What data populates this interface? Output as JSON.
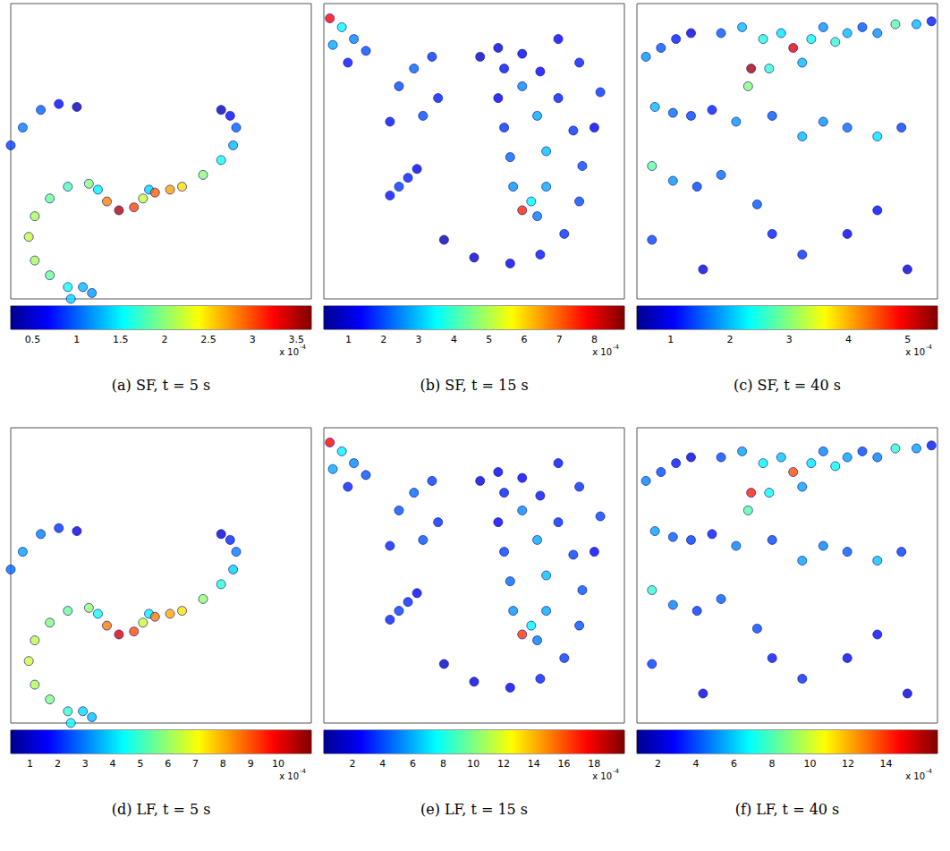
{
  "chart_data": [
    {
      "type": "scatter",
      "title": "(a) SF, t = 5 s",
      "xlim": [
        0,
        1
      ],
      "ylim": [
        0,
        1
      ],
      "tick_labels": false,
      "points": [
        [
          0.0,
          0.52,
          0.9
        ],
        [
          0.04,
          0.58,
          1.1
        ],
        [
          0.1,
          0.64,
          1.0
        ],
        [
          0.16,
          0.66,
          0.7
        ],
        [
          0.22,
          0.65,
          0.4
        ],
        [
          0.2,
          0.0,
          1.4
        ],
        [
          0.19,
          0.04,
          1.6
        ],
        [
          0.13,
          0.08,
          1.9
        ],
        [
          0.08,
          0.13,
          2.1
        ],
        [
          0.06,
          0.21,
          2.2
        ],
        [
          0.08,
          0.28,
          2.1
        ],
        [
          0.13,
          0.34,
          1.9
        ],
        [
          0.19,
          0.38,
          1.8
        ],
        [
          0.26,
          0.39,
          2.0
        ],
        [
          0.29,
          0.37,
          1.5
        ],
        [
          0.24,
          0.04,
          1.3
        ],
        [
          0.27,
          0.02,
          1.2
        ],
        [
          0.32,
          0.33,
          2.8
        ],
        [
          0.36,
          0.3,
          3.5
        ],
        [
          0.41,
          0.31,
          3.0
        ],
        [
          0.44,
          0.34,
          2.2
        ],
        [
          0.46,
          0.37,
          1.4
        ],
        [
          0.48,
          0.36,
          2.9
        ],
        [
          0.53,
          0.37,
          2.7
        ],
        [
          0.57,
          0.38,
          2.5
        ],
        [
          0.64,
          0.42,
          2.0
        ],
        [
          0.7,
          0.47,
          1.6
        ],
        [
          0.74,
          0.52,
          1.3
        ],
        [
          0.75,
          0.58,
          1.0
        ],
        [
          0.73,
          0.62,
          0.7
        ],
        [
          0.7,
          0.64,
          0.4
        ]
      ],
      "colorbar": {
        "range": [
          0.25,
          3.67
        ],
        "ticks": [
          0.5,
          1,
          1.5,
          2,
          2.5,
          3,
          3.5
        ],
        "multiplier": {
          "base": "x 10",
          "exponent": "-4"
        }
      }
    },
    {
      "type": "scatter",
      "title": "(b) SF, t = 15 s",
      "xlim": [
        0,
        1
      ],
      "ylim": [
        0,
        1
      ],
      "tick_labels": false,
      "points": [
        [
          0.52,
          0.82,
          0.8
        ],
        [
          0.58,
          0.85,
          1.0
        ],
        [
          0.66,
          0.83,
          1.2
        ],
        [
          0.72,
          0.77,
          1.4
        ],
        [
          0.78,
          0.68,
          1.6
        ],
        [
          0.83,
          0.57,
          1.8
        ],
        [
          0.86,
          0.45,
          2.0
        ],
        [
          0.85,
          0.33,
          2.0
        ],
        [
          0.8,
          0.22,
          1.8
        ],
        [
          0.72,
          0.15,
          1.5
        ],
        [
          0.62,
          0.12,
          1.2
        ],
        [
          0.5,
          0.14,
          0.9
        ],
        [
          0.4,
          0.2,
          0.6
        ],
        [
          0.6,
          0.78,
          1.5
        ],
        [
          0.66,
          0.72,
          2.5
        ],
        [
          0.71,
          0.62,
          2.8
        ],
        [
          0.74,
          0.5,
          3.0
        ],
        [
          0.74,
          0.38,
          2.8
        ],
        [
          0.71,
          0.28,
          2.4
        ],
        [
          0.58,
          0.68,
          1.2
        ],
        [
          0.6,
          0.58,
          1.8
        ],
        [
          0.62,
          0.48,
          2.2
        ],
        [
          0.63,
          0.38,
          2.6
        ],
        [
          0.66,
          0.3,
          7.5
        ],
        [
          0.69,
          0.33,
          3.5
        ],
        [
          0.02,
          0.95,
          7.8
        ],
        [
          0.06,
          0.92,
          3.5
        ],
        [
          0.1,
          0.88,
          2.5
        ],
        [
          0.14,
          0.84,
          2.0
        ],
        [
          0.08,
          0.8,
          1.5
        ],
        [
          0.03,
          0.86,
          2.8
        ],
        [
          0.25,
          0.72,
          2.0
        ],
        [
          0.3,
          0.78,
          2.2
        ],
        [
          0.36,
          0.82,
          1.8
        ],
        [
          0.22,
          0.6,
          1.5
        ],
        [
          0.33,
          0.62,
          2.0
        ],
        [
          0.38,
          0.68,
          1.6
        ],
        [
          0.78,
          0.88,
          1.4
        ],
        [
          0.85,
          0.8,
          1.6
        ],
        [
          0.92,
          0.7,
          1.8
        ],
        [
          0.9,
          0.58,
          1.2
        ],
        [
          0.22,
          0.35,
          1.5
        ],
        [
          0.25,
          0.38,
          1.8
        ],
        [
          0.28,
          0.41,
          1.6
        ],
        [
          0.31,
          0.44,
          1.2
        ]
      ],
      "colorbar": {
        "range": [
          0.3,
          8.85
        ],
        "ticks": [
          1,
          2,
          3,
          4,
          5,
          6,
          7,
          8
        ],
        "multiplier": {
          "base": "x 10",
          "exponent": "-4"
        }
      }
    },
    {
      "type": "scatter",
      "title": "(c) SF, t = 40 s",
      "xlim": [
        0,
        1
      ],
      "ylim": [
        0,
        1
      ],
      "tick_labels": false,
      "points": [
        [
          0.28,
          0.9,
          1.5
        ],
        [
          0.35,
          0.92,
          2.0
        ],
        [
          0.42,
          0.88,
          2.5
        ],
        [
          0.48,
          0.9,
          2.2
        ],
        [
          0.52,
          0.85,
          5.0
        ],
        [
          0.55,
          0.8,
          2.0
        ],
        [
          0.58,
          0.88,
          2.4
        ],
        [
          0.62,
          0.92,
          1.8
        ],
        [
          0.66,
          0.87,
          2.6
        ],
        [
          0.7,
          0.9,
          2.0
        ],
        [
          0.75,
          0.92,
          1.5
        ],
        [
          0.8,
          0.9,
          1.8
        ],
        [
          0.86,
          0.93,
          2.8
        ],
        [
          0.93,
          0.93,
          2.0
        ],
        [
          0.98,
          0.94,
          1.2
        ],
        [
          0.38,
          0.78,
          5.3
        ],
        [
          0.37,
          0.72,
          3.0
        ],
        [
          0.44,
          0.78,
          2.6
        ],
        [
          0.03,
          0.82,
          1.8
        ],
        [
          0.08,
          0.85,
          1.5
        ],
        [
          0.13,
          0.88,
          1.2
        ],
        [
          0.18,
          0.9,
          0.9
        ],
        [
          0.06,
          0.65,
          2.0
        ],
        [
          0.12,
          0.63,
          1.6
        ],
        [
          0.18,
          0.62,
          1.4
        ],
        [
          0.25,
          0.64,
          1.2
        ],
        [
          0.33,
          0.6,
          1.8
        ],
        [
          0.45,
          0.62,
          1.5
        ],
        [
          0.55,
          0.55,
          2.0
        ],
        [
          0.62,
          0.6,
          1.8
        ],
        [
          0.7,
          0.58,
          1.6
        ],
        [
          0.8,
          0.55,
          2.2
        ],
        [
          0.88,
          0.58,
          1.4
        ],
        [
          0.05,
          0.45,
          2.8
        ],
        [
          0.12,
          0.4,
          1.8
        ],
        [
          0.2,
          0.38,
          1.4
        ],
        [
          0.28,
          0.42,
          1.6
        ],
        [
          0.4,
          0.32,
          1.5
        ],
        [
          0.45,
          0.22,
          1.2
        ],
        [
          0.55,
          0.15,
          1.3
        ],
        [
          0.7,
          0.22,
          1.0
        ],
        [
          0.8,
          0.3,
          1.1
        ],
        [
          0.05,
          0.2,
          1.4
        ],
        [
          0.22,
          0.1,
          0.9
        ],
        [
          0.9,
          0.1,
          0.8
        ]
      ],
      "colorbar": {
        "range": [
          0.43,
          5.5
        ],
        "ticks": [
          1,
          2,
          3,
          4,
          5
        ],
        "multiplier": {
          "base": "x 10",
          "exponent": "-4"
        }
      }
    },
    {
      "type": "scatter",
      "title": "(d) LF, t = 5 s",
      "xlim": [
        0,
        1
      ],
      "ylim": [
        0,
        1
      ],
      "tick_labels": false,
      "points": [
        [
          0.0,
          0.52,
          2.8
        ],
        [
          0.04,
          0.58,
          3.4
        ],
        [
          0.1,
          0.64,
          3.0
        ],
        [
          0.16,
          0.66,
          2.2
        ],
        [
          0.22,
          0.65,
          1.3
        ],
        [
          0.2,
          0.0,
          4.5
        ],
        [
          0.19,
          0.04,
          5.0
        ],
        [
          0.13,
          0.08,
          5.8
        ],
        [
          0.08,
          0.13,
          6.3
        ],
        [
          0.06,
          0.21,
          6.6
        ],
        [
          0.08,
          0.28,
          6.4
        ],
        [
          0.13,
          0.34,
          5.8
        ],
        [
          0.19,
          0.38,
          5.5
        ],
        [
          0.26,
          0.39,
          6.0
        ],
        [
          0.29,
          0.37,
          4.6
        ],
        [
          0.24,
          0.04,
          4.0
        ],
        [
          0.27,
          0.02,
          3.7
        ],
        [
          0.32,
          0.33,
          8.5
        ],
        [
          0.36,
          0.3,
          10.3
        ],
        [
          0.41,
          0.31,
          9.0
        ],
        [
          0.44,
          0.34,
          6.6
        ],
        [
          0.46,
          0.37,
          4.3
        ],
        [
          0.48,
          0.36,
          8.5
        ],
        [
          0.53,
          0.37,
          8.0
        ],
        [
          0.57,
          0.38,
          7.4
        ],
        [
          0.64,
          0.42,
          6.0
        ],
        [
          0.7,
          0.47,
          4.8
        ],
        [
          0.74,
          0.52,
          3.9
        ],
        [
          0.75,
          0.58,
          3.0
        ],
        [
          0.73,
          0.62,
          2.1
        ],
        [
          0.7,
          0.64,
          1.2
        ]
      ],
      "colorbar": {
        "range": [
          0.3,
          11.2
        ],
        "ticks": [
          1,
          2,
          3,
          4,
          5,
          6,
          7,
          8,
          9,
          10
        ],
        "multiplier": {
          "base": "x 10",
          "exponent": "-4"
        }
      }
    },
    {
      "type": "scatter",
      "title": "(e) LF, t = 15 s",
      "xlim": [
        0,
        1
      ],
      "ylim": [
        0,
        1
      ],
      "tick_labels": false,
      "points": [
        [
          0.52,
          0.82,
          1.7
        ],
        [
          0.58,
          0.85,
          2.1
        ],
        [
          0.66,
          0.83,
          2.5
        ],
        [
          0.72,
          0.77,
          2.9
        ],
        [
          0.78,
          0.68,
          3.4
        ],
        [
          0.83,
          0.57,
          3.8
        ],
        [
          0.86,
          0.45,
          4.2
        ],
        [
          0.85,
          0.33,
          4.2
        ],
        [
          0.8,
          0.22,
          3.8
        ],
        [
          0.72,
          0.15,
          3.2
        ],
        [
          0.62,
          0.12,
          2.5
        ],
        [
          0.5,
          0.14,
          1.9
        ],
        [
          0.4,
          0.2,
          1.3
        ],
        [
          0.6,
          0.78,
          3.2
        ],
        [
          0.66,
          0.72,
          5.3
        ],
        [
          0.71,
          0.62,
          5.9
        ],
        [
          0.74,
          0.5,
          6.3
        ],
        [
          0.74,
          0.38,
          5.9
        ],
        [
          0.71,
          0.28,
          5.0
        ],
        [
          0.58,
          0.68,
          2.5
        ],
        [
          0.6,
          0.58,
          3.8
        ],
        [
          0.62,
          0.48,
          4.6
        ],
        [
          0.63,
          0.38,
          5.5
        ],
        [
          0.66,
          0.3,
          16.5
        ],
        [
          0.69,
          0.33,
          7.4
        ],
        [
          0.02,
          0.95,
          17.5
        ],
        [
          0.06,
          0.92,
          7.4
        ],
        [
          0.1,
          0.88,
          5.3
        ],
        [
          0.14,
          0.84,
          4.2
        ],
        [
          0.08,
          0.8,
          3.2
        ],
        [
          0.03,
          0.86,
          5.9
        ],
        [
          0.25,
          0.72,
          4.2
        ],
        [
          0.3,
          0.78,
          4.6
        ],
        [
          0.36,
          0.82,
          3.8
        ],
        [
          0.22,
          0.6,
          3.2
        ],
        [
          0.33,
          0.62,
          4.2
        ],
        [
          0.38,
          0.68,
          3.4
        ],
        [
          0.78,
          0.88,
          2.9
        ],
        [
          0.85,
          0.8,
          3.4
        ],
        [
          0.92,
          0.7,
          3.8
        ],
        [
          0.9,
          0.58,
          2.5
        ],
        [
          0.22,
          0.35,
          3.2
        ],
        [
          0.25,
          0.38,
          3.8
        ],
        [
          0.28,
          0.41,
          3.4
        ],
        [
          0.31,
          0.44,
          2.5
        ]
      ],
      "colorbar": {
        "range": [
          0.1,
          20
        ],
        "ticks": [
          2,
          4,
          6,
          8,
          10,
          12,
          14,
          16,
          18
        ],
        "multiplier": {
          "base": "x 10",
          "exponent": "-4"
        }
      }
    },
    {
      "type": "scatter",
      "title": "(f) LF, t = 40 s",
      "xlim": [
        0,
        1
      ],
      "ylim": [
        0,
        1
      ],
      "tick_labels": false,
      "points": [
        [
          0.28,
          0.9,
          4.0
        ],
        [
          0.35,
          0.92,
          5.4
        ],
        [
          0.42,
          0.88,
          6.8
        ],
        [
          0.48,
          0.9,
          5.9
        ],
        [
          0.52,
          0.85,
          13.5
        ],
        [
          0.55,
          0.8,
          5.4
        ],
        [
          0.58,
          0.88,
          6.5
        ],
        [
          0.62,
          0.92,
          4.9
        ],
        [
          0.66,
          0.87,
          7.0
        ],
        [
          0.7,
          0.9,
          5.4
        ],
        [
          0.75,
          0.92,
          4.0
        ],
        [
          0.8,
          0.9,
          4.9
        ],
        [
          0.86,
          0.93,
          7.6
        ],
        [
          0.93,
          0.93,
          5.4
        ],
        [
          0.98,
          0.94,
          3.2
        ],
        [
          0.38,
          0.78,
          14.3
        ],
        [
          0.37,
          0.72,
          8.1
        ],
        [
          0.44,
          0.78,
          7.0
        ],
        [
          0.03,
          0.82,
          4.9
        ],
        [
          0.08,
          0.85,
          4.0
        ],
        [
          0.13,
          0.88,
          3.2
        ],
        [
          0.18,
          0.9,
          2.4
        ],
        [
          0.06,
          0.65,
          5.4
        ],
        [
          0.12,
          0.63,
          4.3
        ],
        [
          0.18,
          0.62,
          3.8
        ],
        [
          0.25,
          0.64,
          3.2
        ],
        [
          0.33,
          0.6,
          4.9
        ],
        [
          0.45,
          0.62,
          4.0
        ],
        [
          0.55,
          0.55,
          5.4
        ],
        [
          0.62,
          0.6,
          4.9
        ],
        [
          0.7,
          0.58,
          4.3
        ],
        [
          0.8,
          0.55,
          5.9
        ],
        [
          0.88,
          0.58,
          3.8
        ],
        [
          0.05,
          0.45,
          7.6
        ],
        [
          0.12,
          0.4,
          4.9
        ],
        [
          0.2,
          0.38,
          3.8
        ],
        [
          0.28,
          0.42,
          4.3
        ],
        [
          0.4,
          0.32,
          4.0
        ],
        [
          0.45,
          0.22,
          3.2
        ],
        [
          0.55,
          0.15,
          3.5
        ],
        [
          0.7,
          0.22,
          2.7
        ],
        [
          0.8,
          0.3,
          3.0
        ],
        [
          0.05,
          0.2,
          3.8
        ],
        [
          0.22,
          0.1,
          2.4
        ],
        [
          0.9,
          0.1,
          2.2
        ]
      ],
      "colorbar": {
        "range": [
          0.9,
          16.7
        ],
        "ticks": [
          2,
          4,
          6,
          8,
          10,
          12,
          14
        ],
        "multiplier": {
          "base": "x 10",
          "exponent": "-4"
        }
      }
    }
  ]
}
